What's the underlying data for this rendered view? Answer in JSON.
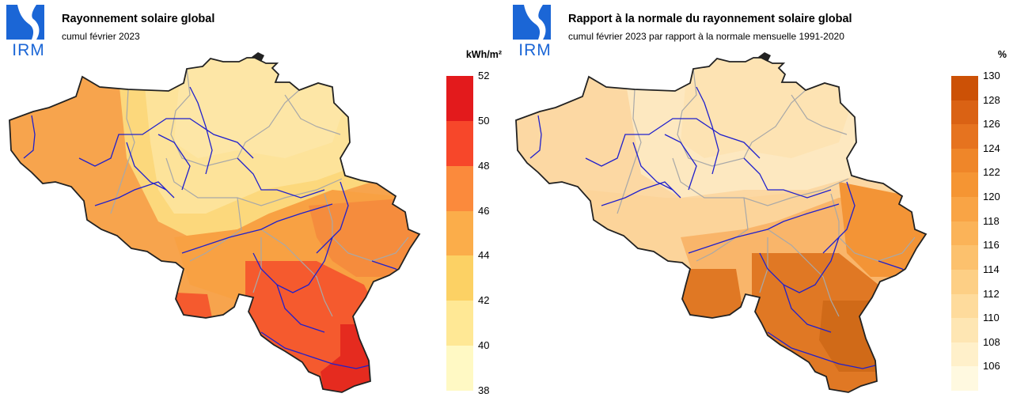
{
  "panels": [
    {
      "logo_text": "IRM",
      "title": "Rayonnement solaire global",
      "subtitle": "cumul février 2023",
      "legend": {
        "unit": "kWh/m²",
        "labels": [
          "52",
          "50",
          "48",
          "46",
          "44",
          "42",
          "40",
          "38"
        ],
        "colors": [
          "#e31a1c",
          "#f7472a",
          "#fb8a3c",
          "#fbad4a",
          "#fcd164",
          "#ffe895",
          "#fff9c4"
        ]
      },
      "map_colors": {
        "north": "#fde6a6",
        "north_center": "#fde39a",
        "center_band": "#fcd87c",
        "west": "#f7a44d",
        "mid": "#f8a143",
        "east": "#f58c3d",
        "south": "#f55a2e",
        "south_tip": "#e52b1f"
      }
    },
    {
      "logo_text": "IRM",
      "title": "Rapport à la normale du rayonnement solaire global",
      "subtitle": "cumul février 2023 par rapport à la normale mensuelle 1991-2020",
      "legend": {
        "unit": "%",
        "labels": [
          "130",
          "128",
          "126",
          "124",
          "122",
          "120",
          "118",
          "116",
          "114",
          "112",
          "110",
          "108",
          "106"
        ],
        "colors": [
          "#cc5106",
          "#da6214",
          "#e6731f",
          "#ef8629",
          "#f59533",
          "#f9a445",
          "#fbb358",
          "#fcc16d",
          "#fdcf85",
          "#fedb9c",
          "#fee6b3",
          "#fff0ca",
          "#fff9e0"
        ]
      },
      "map_colors": {
        "north": "#fde3b3",
        "north_center": "#fde8c0",
        "center_band": "#fcd49a",
        "west": "#fcd8a3",
        "mid": "#f9b56a",
        "east": "#f39436",
        "south": "#e07824",
        "south_tip": "#d06a18"
      }
    }
  ]
}
